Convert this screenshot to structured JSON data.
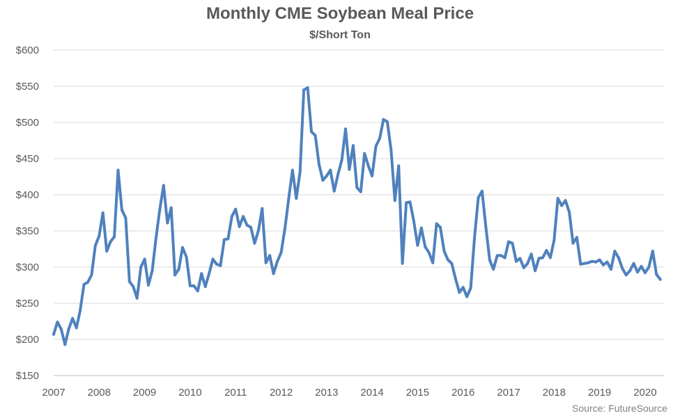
{
  "chart_data": {
    "type": "line",
    "title": "Monthly CME Soybean Meal Price",
    "subtitle": "$/Short Ton",
    "source": "Source: FutureSource",
    "xlabel": "",
    "ylabel": "",
    "ylim": [
      150,
      600
    ],
    "y_ticks": [
      150,
      200,
      250,
      300,
      350,
      400,
      450,
      500,
      550,
      600
    ],
    "y_tick_labels": [
      "$150",
      "$200",
      "$250",
      "$300",
      "$350",
      "$400",
      "$450",
      "$500",
      "$550",
      "$600"
    ],
    "x_tick_labels": [
      "2007",
      "2008",
      "2009",
      "2010",
      "2011",
      "2012",
      "2013",
      "2014",
      "2015",
      "2016",
      "2017",
      "2018",
      "2019",
      "2020"
    ],
    "x_start": "2007-01",
    "x_end": "2020-06",
    "grid": true,
    "line_color": "#4f81bd",
    "series": [
      {
        "values": [
          207,
          224,
          214,
          193,
          215,
          229,
          216,
          240,
          276,
          279,
          289,
          330,
          343,
          375,
          322,
          335,
          342,
          434,
          379,
          368,
          280,
          273,
          257,
          300,
          311,
          275,
          295,
          340,
          380,
          413,
          361,
          382,
          289,
          297,
          327,
          314,
          274,
          274,
          267,
          291,
          273,
          291,
          311,
          304,
          302,
          338,
          339,
          370,
          380,
          356,
          370,
          358,
          355,
          333,
          350,
          381,
          306,
          316,
          291,
          308,
          320,
          353,
          395,
          434,
          395,
          432,
          545,
          548,
          487,
          482,
          442,
          420,
          426,
          434,
          405,
          428,
          448,
          491,
          435,
          468,
          410,
          404,
          457,
          440,
          426,
          467,
          478,
          504,
          501,
          462,
          392,
          440,
          305,
          389,
          390,
          363,
          330,
          354,
          328,
          320,
          306,
          360,
          355,
          322,
          310,
          305,
          284,
          265,
          272,
          259,
          271,
          340,
          396,
          405,
          355,
          310,
          297,
          316,
          316,
          313,
          335,
          333,
          308,
          312,
          299,
          305,
          318,
          295,
          312,
          313,
          323,
          313,
          337,
          395,
          385,
          392,
          376,
          333,
          341,
          304,
          305,
          306,
          308,
          307,
          310,
          303,
          307,
          297,
          322,
          313,
          298,
          289,
          295,
          305,
          293,
          301,
          292,
          300,
          322,
          290,
          283
        ]
      }
    ]
  }
}
